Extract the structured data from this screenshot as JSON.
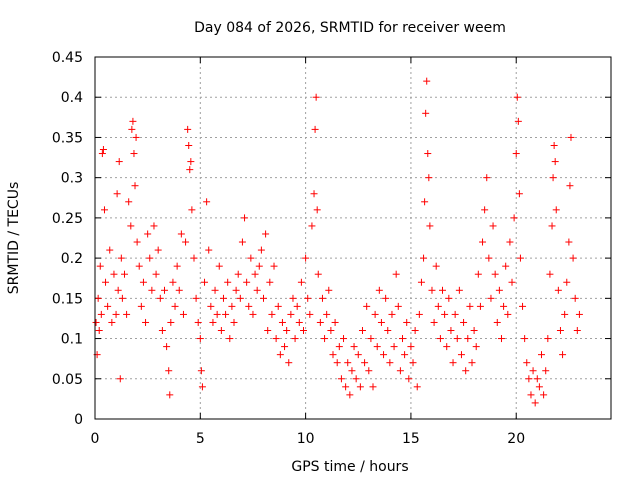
{
  "chart_data": {
    "type": "scatter",
    "title": "Day 084 of 2026, SRMTID for receiver weem",
    "xlabel": "GPS time / hours",
    "ylabel": "SRMTID / TECUs",
    "xlim": [
      0,
      24.5
    ],
    "ylim": [
      0,
      0.45
    ],
    "xticks": [
      0,
      5,
      10,
      15,
      20
    ],
    "xtick_labels": [
      "0",
      "5",
      "10",
      "15",
      "20"
    ],
    "yticks": [
      0,
      0.05,
      0.1,
      0.15,
      0.2,
      0.25,
      0.3,
      0.35,
      0.4,
      0.45
    ],
    "ytick_labels": [
      "0",
      "0.05",
      "0.1",
      "0.15",
      "0.2",
      "0.25",
      "0.3",
      "0.35",
      "0.4",
      "0.45"
    ],
    "grid": true,
    "marker": "+",
    "marker_color": "#ff0000",
    "series": [
      {
        "name": "SRMTID",
        "points": [
          [
            0.05,
            0.12
          ],
          [
            0.1,
            0.08
          ],
          [
            0.15,
            0.15
          ],
          [
            0.2,
            0.11
          ],
          [
            0.25,
            0.19
          ],
          [
            0.3,
            0.13
          ],
          [
            0.35,
            0.33
          ],
          [
            0.4,
            0.335
          ],
          [
            0.45,
            0.26
          ],
          [
            0.5,
            0.17
          ],
          [
            0.6,
            0.14
          ],
          [
            0.7,
            0.21
          ],
          [
            0.8,
            0.12
          ],
          [
            0.9,
            0.18
          ],
          [
            1.0,
            0.13
          ],
          [
            1.05,
            0.28
          ],
          [
            1.1,
            0.16
          ],
          [
            1.15,
            0.32
          ],
          [
            1.2,
            0.05
          ],
          [
            1.25,
            0.2
          ],
          [
            1.3,
            0.15
          ],
          [
            1.4,
            0.18
          ],
          [
            1.5,
            0.13
          ],
          [
            1.6,
            0.27
          ],
          [
            1.7,
            0.24
          ],
          [
            1.75,
            0.36
          ],
          [
            1.8,
            0.37
          ],
          [
            1.85,
            0.33
          ],
          [
            1.9,
            0.29
          ],
          [
            1.95,
            0.35
          ],
          [
            2.0,
            0.22
          ],
          [
            2.1,
            0.19
          ],
          [
            2.2,
            0.14
          ],
          [
            2.3,
            0.17
          ],
          [
            2.4,
            0.12
          ],
          [
            2.5,
            0.23
          ],
          [
            2.6,
            0.2
          ],
          [
            2.7,
            0.16
          ],
          [
            2.8,
            0.24
          ],
          [
            2.9,
            0.18
          ],
          [
            3.0,
            0.21
          ],
          [
            3.1,
            0.15
          ],
          [
            3.2,
            0.11
          ],
          [
            3.3,
            0.16
          ],
          [
            3.4,
            0.09
          ],
          [
            3.5,
            0.06
          ],
          [
            3.55,
            0.03
          ],
          [
            3.6,
            0.12
          ],
          [
            3.7,
            0.17
          ],
          [
            3.8,
            0.14
          ],
          [
            3.9,
            0.19
          ],
          [
            4.0,
            0.16
          ],
          [
            4.1,
            0.23
          ],
          [
            4.2,
            0.13
          ],
          [
            4.3,
            0.22
          ],
          [
            4.4,
            0.36
          ],
          [
            4.45,
            0.34
          ],
          [
            4.5,
            0.31
          ],
          [
            4.55,
            0.32
          ],
          [
            4.6,
            0.26
          ],
          [
            4.7,
            0.2
          ],
          [
            4.8,
            0.15
          ],
          [
            4.9,
            0.12
          ],
          [
            5.0,
            0.1
          ],
          [
            5.05,
            0.06
          ],
          [
            5.1,
            0.04
          ],
          [
            5.2,
            0.17
          ],
          [
            5.3,
            0.27
          ],
          [
            5.4,
            0.21
          ],
          [
            5.5,
            0.14
          ],
          [
            5.6,
            0.12
          ],
          [
            5.7,
            0.16
          ],
          [
            5.8,
            0.13
          ],
          [
            5.9,
            0.19
          ],
          [
            6.0,
            0.11
          ],
          [
            6.1,
            0.15
          ],
          [
            6.2,
            0.13
          ],
          [
            6.3,
            0.17
          ],
          [
            6.4,
            0.1
          ],
          [
            6.5,
            0.14
          ],
          [
            6.6,
            0.12
          ],
          [
            6.7,
            0.16
          ],
          [
            6.8,
            0.18
          ],
          [
            6.9,
            0.15
          ],
          [
            7.0,
            0.22
          ],
          [
            7.1,
            0.25
          ],
          [
            7.2,
            0.17
          ],
          [
            7.3,
            0.14
          ],
          [
            7.4,
            0.2
          ],
          [
            7.5,
            0.13
          ],
          [
            7.6,
            0.18
          ],
          [
            7.7,
            0.16
          ],
          [
            7.8,
            0.19
          ],
          [
            7.9,
            0.21
          ],
          [
            8.0,
            0.15
          ],
          [
            8.1,
            0.23
          ],
          [
            8.2,
            0.11
          ],
          [
            8.3,
            0.17
          ],
          [
            8.4,
            0.13
          ],
          [
            8.5,
            0.19
          ],
          [
            8.6,
            0.1
          ],
          [
            8.7,
            0.14
          ],
          [
            8.8,
            0.08
          ],
          [
            8.9,
            0.12
          ],
          [
            9.0,
            0.09
          ],
          [
            9.1,
            0.11
          ],
          [
            9.2,
            0.07
          ],
          [
            9.3,
            0.13
          ],
          [
            9.4,
            0.15
          ],
          [
            9.5,
            0.1
          ],
          [
            9.6,
            0.14
          ],
          [
            9.7,
            0.12
          ],
          [
            9.8,
            0.17
          ],
          [
            9.9,
            0.11
          ],
          [
            10.0,
            0.2
          ],
          [
            10.1,
            0.15
          ],
          [
            10.2,
            0.13
          ],
          [
            10.3,
            0.24
          ],
          [
            10.4,
            0.28
          ],
          [
            10.45,
            0.36
          ],
          [
            10.5,
            0.4
          ],
          [
            10.55,
            0.26
          ],
          [
            10.6,
            0.18
          ],
          [
            10.7,
            0.12
          ],
          [
            10.8,
            0.15
          ],
          [
            10.9,
            0.1
          ],
          [
            11.0,
            0.13
          ],
          [
            11.1,
            0.16
          ],
          [
            11.2,
            0.11
          ],
          [
            11.3,
            0.08
          ],
          [
            11.4,
            0.12
          ],
          [
            11.5,
            0.07
          ],
          [
            11.6,
            0.09
          ],
          [
            11.7,
            0.05
          ],
          [
            11.8,
            0.1
          ],
          [
            11.9,
            0.04
          ],
          [
            12.0,
            0.07
          ],
          [
            12.1,
            0.03
          ],
          [
            12.2,
            0.06
          ],
          [
            12.3,
            0.09
          ],
          [
            12.4,
            0.05
          ],
          [
            12.5,
            0.08
          ],
          [
            12.6,
            0.04
          ],
          [
            12.7,
            0.11
          ],
          [
            12.8,
            0.07
          ],
          [
            12.9,
            0.14
          ],
          [
            13.0,
            0.06
          ],
          [
            13.1,
            0.1
          ],
          [
            13.2,
            0.04
          ],
          [
            13.3,
            0.13
          ],
          [
            13.4,
            0.09
          ],
          [
            13.5,
            0.16
          ],
          [
            13.6,
            0.12
          ],
          [
            13.7,
            0.08
          ],
          [
            13.8,
            0.15
          ],
          [
            13.9,
            0.11
          ],
          [
            14.0,
            0.07
          ],
          [
            14.1,
            0.13
          ],
          [
            14.2,
            0.09
          ],
          [
            14.3,
            0.18
          ],
          [
            14.4,
            0.14
          ],
          [
            14.5,
            0.06
          ],
          [
            14.6,
            0.1
          ],
          [
            14.7,
            0.08
          ],
          [
            14.8,
            0.12
          ],
          [
            14.9,
            0.05
          ],
          [
            15.0,
            0.09
          ],
          [
            15.1,
            0.07
          ],
          [
            15.2,
            0.11
          ],
          [
            15.3,
            0.04
          ],
          [
            15.4,
            0.13
          ],
          [
            15.5,
            0.17
          ],
          [
            15.6,
            0.2
          ],
          [
            15.65,
            0.27
          ],
          [
            15.7,
            0.38
          ],
          [
            15.75,
            0.42
          ],
          [
            15.8,
            0.33
          ],
          [
            15.85,
            0.3
          ],
          [
            15.9,
            0.24
          ],
          [
            16.0,
            0.16
          ],
          [
            16.1,
            0.12
          ],
          [
            16.2,
            0.19
          ],
          [
            16.3,
            0.14
          ],
          [
            16.4,
            0.1
          ],
          [
            16.5,
            0.16
          ],
          [
            16.6,
            0.13
          ],
          [
            16.7,
            0.09
          ],
          [
            16.8,
            0.15
          ],
          [
            16.9,
            0.11
          ],
          [
            17.0,
            0.07
          ],
          [
            17.1,
            0.13
          ],
          [
            17.2,
            0.1
          ],
          [
            17.3,
            0.16
          ],
          [
            17.4,
            0.08
          ],
          [
            17.5,
            0.12
          ],
          [
            17.6,
            0.06
          ],
          [
            17.7,
            0.1
          ],
          [
            17.8,
            0.14
          ],
          [
            17.9,
            0.07
          ],
          [
            18.0,
            0.11
          ],
          [
            18.1,
            0.09
          ],
          [
            18.2,
            0.18
          ],
          [
            18.3,
            0.14
          ],
          [
            18.4,
            0.22
          ],
          [
            18.5,
            0.26
          ],
          [
            18.6,
            0.3
          ],
          [
            18.7,
            0.2
          ],
          [
            18.8,
            0.15
          ],
          [
            18.9,
            0.24
          ],
          [
            19.0,
            0.18
          ],
          [
            19.1,
            0.12
          ],
          [
            19.2,
            0.16
          ],
          [
            19.3,
            0.1
          ],
          [
            19.4,
            0.14
          ],
          [
            19.5,
            0.19
          ],
          [
            19.6,
            0.13
          ],
          [
            19.7,
            0.22
          ],
          [
            19.8,
            0.17
          ],
          [
            19.9,
            0.25
          ],
          [
            20.0,
            0.33
          ],
          [
            20.05,
            0.4
          ],
          [
            20.1,
            0.37
          ],
          [
            20.15,
            0.28
          ],
          [
            20.2,
            0.2
          ],
          [
            20.3,
            0.14
          ],
          [
            20.4,
            0.1
          ],
          [
            20.5,
            0.07
          ],
          [
            20.6,
            0.05
          ],
          [
            20.7,
            0.03
          ],
          [
            20.8,
            0.06
          ],
          [
            20.9,
            0.02
          ],
          [
            21.0,
            0.05
          ],
          [
            21.1,
            0.04
          ],
          [
            21.2,
            0.08
          ],
          [
            21.3,
            0.03
          ],
          [
            21.4,
            0.06
          ],
          [
            21.5,
            0.1
          ],
          [
            21.6,
            0.18
          ],
          [
            21.7,
            0.24
          ],
          [
            21.75,
            0.3
          ],
          [
            21.8,
            0.34
          ],
          [
            21.85,
            0.32
          ],
          [
            21.9,
            0.26
          ],
          [
            22.0,
            0.16
          ],
          [
            22.1,
            0.11
          ],
          [
            22.2,
            0.08
          ],
          [
            22.3,
            0.13
          ],
          [
            22.4,
            0.17
          ],
          [
            22.5,
            0.22
          ],
          [
            22.55,
            0.29
          ],
          [
            22.6,
            0.35
          ],
          [
            22.7,
            0.2
          ],
          [
            22.8,
            0.15
          ],
          [
            22.9,
            0.11
          ],
          [
            23.0,
            0.13
          ]
        ]
      }
    ]
  }
}
